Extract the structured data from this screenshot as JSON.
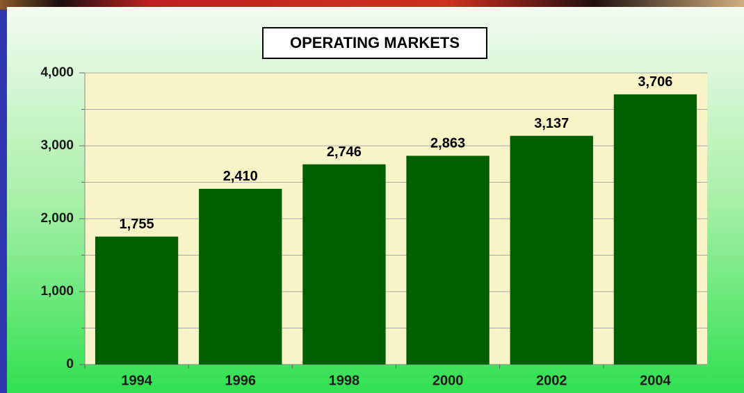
{
  "chart_data": {
    "type": "bar",
    "title": "OPERATING MARKETS",
    "categories": [
      "1994",
      "1996",
      "1998",
      "2000",
      "2002",
      "2004"
    ],
    "values": [
      1755,
      2410,
      2746,
      2863,
      3137,
      3706
    ],
    "value_labels": [
      "1,755",
      "2,410",
      "2,746",
      "2,863",
      "3,137",
      "3,706"
    ],
    "color": "#006000",
    "ylim": [
      0,
      4000
    ],
    "yticks": [
      0,
      {
        "value": 1000,
        "label": "1,000"
      },
      {
        "value": 2000,
        "label": "2,000"
      },
      {
        "value": 3000,
        "label": "3,000"
      },
      {
        "value": 4000,
        "label": "4,000"
      }
    ],
    "yminorticks": [
      500,
      1500,
      2500,
      3500
    ],
    "grid": true
  }
}
